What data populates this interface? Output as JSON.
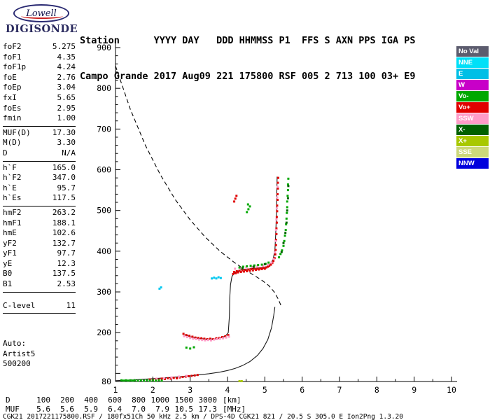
{
  "logo": {
    "brand": "Lowell",
    "product": "DIGISONDE"
  },
  "header": {
    "line1": "Station      YYYY DAY   DDD HHMMSS P1  FFS S AXN PPS IGA PS",
    "line2": "Campo Grande 2017 Aug09 221 175800 RSF 005 2 713 100 03+ E9"
  },
  "params": {
    "groups": [
      {
        "rows": [
          [
            "foF2",
            "5.275"
          ],
          [
            "foF1",
            "4.35"
          ],
          [
            "foF1p",
            "4.24"
          ],
          [
            "foE",
            "2.76"
          ],
          [
            "foEp",
            "3.04"
          ],
          [
            "fxI",
            "5.65"
          ],
          [
            "foEs",
            "2.95"
          ],
          [
            "fmin",
            "1.00"
          ]
        ]
      },
      {
        "rows": [
          [
            "MUF(D)",
            "17.30"
          ],
          [
            "M(D)",
            "3.30"
          ],
          [
            "D",
            "N/A"
          ]
        ]
      },
      {
        "rows": [
          [
            "h`F",
            "165.0"
          ],
          [
            "h`F2",
            "347.0"
          ],
          [
            "h`E",
            "95.7"
          ],
          [
            "h`Es",
            "117.5"
          ]
        ]
      },
      {
        "rows": [
          [
            "hmF2",
            "263.2"
          ],
          [
            "hmF1",
            "188.1"
          ],
          [
            "hmE",
            "102.6"
          ],
          [
            "yF2",
            "132.7"
          ],
          [
            "yF1",
            "97.7"
          ],
          [
            "yE",
            "12.3"
          ],
          [
            "B0",
            "137.5"
          ],
          [
            "B1",
            "2.53"
          ]
        ]
      },
      {
        "rows": [
          [
            "C-level",
            "11"
          ]
        ]
      }
    ],
    "footer_lines": [
      "Auto:",
      "Artist5",
      "500200"
    ]
  },
  "legend": {
    "items": [
      {
        "label": "No Val",
        "color": "#5c5c6e"
      },
      {
        "label": "NNE",
        "color": "#00e0f8"
      },
      {
        "label": "E",
        "color": "#00bfe6"
      },
      {
        "label": "W",
        "color": "#c800c8"
      },
      {
        "label": "Vo-",
        "color": "#00a800"
      },
      {
        "label": "Vo+",
        "color": "#e00000"
      },
      {
        "label": "SSW",
        "color": "#ff9cc8"
      },
      {
        "label": "X-",
        "color": "#006000"
      },
      {
        "label": "X+",
        "color": "#a8c800"
      },
      {
        "label": "SSE",
        "color": "#ccd87a"
      },
      {
        "label": "NNW",
        "color": "#0000dd"
      }
    ]
  },
  "chart_data": {
    "type": "scatter",
    "title": "Digisonde ionogram Campo Grande 2017 Aug09 221 175800",
    "xlabel": "[MHz]",
    "ylabel": "[km]",
    "xlim": [
      1,
      10
    ],
    "ylim": [
      80,
      900
    ],
    "grid": false,
    "x_ticks": [
      1,
      2,
      3,
      4,
      5,
      6,
      7,
      8,
      9,
      10
    ],
    "y_tick_labels": [
      900,
      800,
      700,
      600,
      500,
      400,
      300,
      200,
      80
    ],
    "series": [
      {
        "name": "transmission-curve",
        "kind": "line",
        "dash": true,
        "color": "#000000",
        "points": [
          [
            1,
            855
          ],
          [
            1.4,
            748
          ],
          [
            1.8,
            660
          ],
          [
            2.2,
            588
          ],
          [
            2.6,
            527
          ],
          [
            3.0,
            477
          ],
          [
            3.4,
            435
          ],
          [
            3.8,
            400
          ],
          [
            4.2,
            371
          ],
          [
            4.6,
            347
          ],
          [
            4.9,
            330
          ],
          [
            5.1,
            316
          ],
          [
            5.25,
            300
          ],
          [
            5.35,
            284
          ],
          [
            5.45,
            263
          ]
        ]
      },
      {
        "name": "true-height-profile",
        "kind": "line",
        "dash": false,
        "color": "#1a1a1a",
        "points": [
          [
            1,
            82
          ],
          [
            1.5,
            84
          ],
          [
            2,
            87
          ],
          [
            2.5,
            90
          ],
          [
            3,
            94
          ],
          [
            3.5,
            99
          ],
          [
            3.8,
            103
          ],
          [
            4.0,
            107
          ],
          [
            4.2,
            112
          ],
          [
            4.4,
            119
          ],
          [
            4.6,
            129
          ],
          [
            4.8,
            144
          ],
          [
            4.95,
            161
          ],
          [
            5.08,
            183
          ],
          [
            5.18,
            212
          ],
          [
            5.24,
            243
          ],
          [
            5.27,
            263
          ]
        ]
      },
      {
        "name": "scaled-trace",
        "kind": "line",
        "dash": false,
        "color": "#1a1a1a",
        "points": [
          [
            2.85,
            195
          ],
          [
            3.0,
            190
          ],
          [
            3.2,
            186
          ],
          [
            3.45,
            184
          ],
          [
            3.7,
            185
          ],
          [
            3.85,
            188
          ],
          [
            3.95,
            192
          ],
          [
            4.02,
            200
          ],
          [
            4.05,
            240
          ],
          [
            4.06,
            285
          ],
          [
            4.08,
            318
          ],
          [
            4.12,
            338
          ],
          [
            4.2,
            348
          ],
          [
            4.35,
            354
          ],
          [
            4.6,
            357
          ],
          [
            4.85,
            359
          ],
          [
            5.05,
            362
          ],
          [
            5.15,
            368
          ],
          [
            5.22,
            380
          ],
          [
            5.27,
            402
          ],
          [
            5.29,
            440
          ],
          [
            5.31,
            490
          ],
          [
            5.32,
            540
          ],
          [
            5.33,
            583
          ]
        ]
      },
      {
        "name": "o-echoes-red",
        "kind": "scatter",
        "color": "#e00000",
        "points": [
          [
            4.15,
            344
          ],
          [
            4.18,
            349
          ],
          [
            4.22,
            346
          ],
          [
            4.25,
            351
          ],
          [
            4.28,
            348
          ],
          [
            4.32,
            352
          ],
          [
            4.36,
            349
          ],
          [
            4.4,
            353
          ],
          [
            4.44,
            350
          ],
          [
            4.48,
            354
          ],
          [
            4.52,
            351
          ],
          [
            4.56,
            355
          ],
          [
            4.6,
            352
          ],
          [
            4.64,
            356
          ],
          [
            4.68,
            353
          ],
          [
            4.72,
            357
          ],
          [
            4.76,
            354
          ],
          [
            4.8,
            357
          ],
          [
            4.84,
            355
          ],
          [
            4.88,
            358
          ],
          [
            4.92,
            356
          ],
          [
            4.96,
            359
          ],
          [
            5.0,
            357
          ],
          [
            5.04,
            360
          ],
          [
            5.08,
            362
          ],
          [
            5.12,
            364
          ],
          [
            5.16,
            367
          ],
          [
            5.2,
            371
          ],
          [
            5.23,
            376
          ],
          [
            5.26,
            383
          ],
          [
            5.28,
            392
          ],
          [
            5.29,
            403
          ],
          [
            5.3,
            415
          ],
          [
            5.3,
            428
          ],
          [
            5.31,
            442
          ],
          [
            5.31,
            456
          ],
          [
            5.32,
            470
          ],
          [
            5.32,
            484
          ],
          [
            5.33,
            498
          ],
          [
            5.33,
            512
          ],
          [
            5.34,
            526
          ],
          [
            5.34,
            540
          ],
          [
            5.35,
            554
          ],
          [
            5.35,
            568
          ],
          [
            5.36,
            580
          ],
          [
            4.18,
            522
          ],
          [
            4.21,
            529
          ],
          [
            4.24,
            536
          ],
          [
            2.82,
            197
          ],
          [
            2.9,
            194
          ],
          [
            2.98,
            192
          ],
          [
            3.06,
            190
          ],
          [
            3.14,
            188
          ],
          [
            3.22,
            187
          ],
          [
            3.3,
            186
          ],
          [
            3.38,
            185
          ],
          [
            3.46,
            184
          ],
          [
            3.54,
            185
          ],
          [
            3.62,
            184
          ],
          [
            3.7,
            186
          ],
          [
            3.78,
            187
          ],
          [
            3.86,
            189
          ],
          [
            3.94,
            191
          ],
          [
            4.02,
            194
          ],
          [
            1.92,
            85
          ],
          [
            2.0,
            84
          ],
          [
            2.08,
            86
          ],
          [
            2.16,
            85
          ],
          [
            2.24,
            87
          ],
          [
            2.32,
            86
          ],
          [
            2.4,
            88
          ],
          [
            2.48,
            87
          ],
          [
            2.56,
            89
          ],
          [
            2.64,
            88
          ],
          [
            2.72,
            90
          ],
          [
            2.8,
            91
          ],
          [
            2.88,
            92
          ],
          [
            2.96,
            93
          ],
          [
            3.04,
            94
          ],
          [
            3.12,
            95
          ],
          [
            3.2,
            96
          ]
        ]
      },
      {
        "name": "o-echoes-pink",
        "kind": "scatter",
        "color": "#ff9cc8",
        "points": [
          [
            2.84,
            191
          ],
          [
            2.92,
            189
          ],
          [
            3.0,
            187
          ],
          [
            3.08,
            185
          ],
          [
            3.16,
            184
          ],
          [
            3.24,
            183
          ],
          [
            3.32,
            182
          ],
          [
            3.4,
            181
          ],
          [
            3.48,
            182
          ],
          [
            3.56,
            181
          ],
          [
            3.64,
            183
          ],
          [
            3.72,
            184
          ],
          [
            3.8,
            185
          ],
          [
            3.88,
            186
          ],
          [
            3.96,
            188
          ],
          [
            4.04,
            190
          ],
          [
            4.2,
            357
          ],
          [
            4.35,
            359
          ],
          [
            4.5,
            360
          ],
          [
            4.65,
            361
          ],
          [
            4.8,
            363
          ],
          [
            4.95,
            364
          ],
          [
            5.08,
            367
          ],
          [
            5.18,
            372
          ],
          [
            5.24,
            381
          ],
          [
            5.27,
            397
          ],
          [
            5.29,
            425
          ],
          [
            5.3,
            452
          ],
          [
            5.31,
            478
          ],
          [
            5.32,
            505
          ],
          [
            5.33,
            532
          ],
          [
            5.34,
            558
          ],
          [
            2.1,
            87
          ],
          [
            2.3,
            88
          ],
          [
            2.5,
            90
          ],
          [
            2.7,
            92
          ],
          [
            2.9,
            94
          ]
        ]
      },
      {
        "name": "x-echoes-green",
        "kind": "scatter",
        "color": "#00a800",
        "points": [
          [
            1.16,
            83
          ],
          [
            1.22,
            82
          ],
          [
            1.28,
            83
          ],
          [
            1.34,
            82
          ],
          [
            1.4,
            83
          ],
          [
            1.46,
            82
          ],
          [
            1.52,
            83
          ],
          [
            1.6,
            82
          ],
          [
            1.68,
            83
          ],
          [
            1.76,
            82
          ],
          [
            1.84,
            83
          ],
          [
            1.92,
            82
          ],
          [
            2.0,
            83
          ],
          [
            2.08,
            82
          ],
          [
            2.16,
            83
          ],
          [
            2.24,
            82
          ],
          [
            4.32,
            360
          ],
          [
            4.42,
            362
          ],
          [
            4.52,
            363
          ],
          [
            4.62,
            364
          ],
          [
            4.72,
            365
          ],
          [
            4.82,
            366
          ],
          [
            4.92,
            367
          ],
          [
            5.02,
            369
          ],
          [
            5.1,
            372
          ],
          [
            5.38,
            385
          ],
          [
            5.42,
            393
          ],
          [
            5.46,
            402
          ],
          [
            5.5,
            413
          ],
          [
            5.52,
            425
          ],
          [
            5.54,
            438
          ],
          [
            5.56,
            452
          ],
          [
            5.57,
            466
          ],
          [
            5.58,
            480
          ],
          [
            5.59,
            494
          ],
          [
            5.6,
            508
          ],
          [
            5.6,
            522
          ],
          [
            5.61,
            536
          ],
          [
            5.62,
            550
          ],
          [
            5.62,
            564
          ],
          [
            5.63,
            578
          ],
          [
            4.52,
            496
          ],
          [
            4.56,
            503
          ],
          [
            4.6,
            510
          ],
          [
            4.55,
            515
          ],
          [
            2.9,
            163
          ],
          [
            3.0,
            161
          ],
          [
            3.1,
            164
          ]
        ]
      },
      {
        "name": "x-echoes-darkgreen",
        "kind": "scatter",
        "color": "#006000",
        "points": [
          [
            5.45,
            398
          ],
          [
            5.5,
            420
          ],
          [
            5.55,
            445
          ],
          [
            5.58,
            470
          ],
          [
            5.6,
            500
          ],
          [
            5.62,
            530
          ],
          [
            5.63,
            560
          ],
          [
            4.4,
            358
          ],
          [
            4.7,
            362
          ],
          [
            5.0,
            368
          ]
        ]
      },
      {
        "name": "oblique-echoes-cyan",
        "kind": "scatter",
        "color": "#00c8f0",
        "points": [
          [
            2.18,
            308
          ],
          [
            2.22,
            311
          ],
          [
            3.58,
            333
          ],
          [
            3.64,
            335
          ],
          [
            3.7,
            333
          ],
          [
            3.76,
            336
          ],
          [
            3.82,
            334
          ]
        ]
      },
      {
        "name": "es-echo-yellow",
        "kind": "scatter",
        "color": "#a8c800",
        "points": [
          [
            4.32,
            81
          ],
          [
            4.38,
            81
          ]
        ]
      }
    ]
  },
  "muf_table": {
    "rows": [
      {
        "label": "D",
        "values": [
          "100",
          "200",
          "400",
          "600",
          "800",
          "1000",
          "1500",
          "3000"
        ],
        "unit": "[km]"
      },
      {
        "label": "MUF",
        "values": [
          "5.6",
          "5.6",
          "5.9",
          "6.4",
          "7.0",
          "7.9",
          "10.5",
          "17.3"
        ],
        "unit": "[MHz]"
      }
    ]
  },
  "footer": {
    "text": "CGK21_2017221175800.RSF / 180fx51Ch 50 kHz 2.5 km / DPS-4D CGK21 821 / 20.5 S 305.0 E Ion2Png 1.3.20"
  }
}
